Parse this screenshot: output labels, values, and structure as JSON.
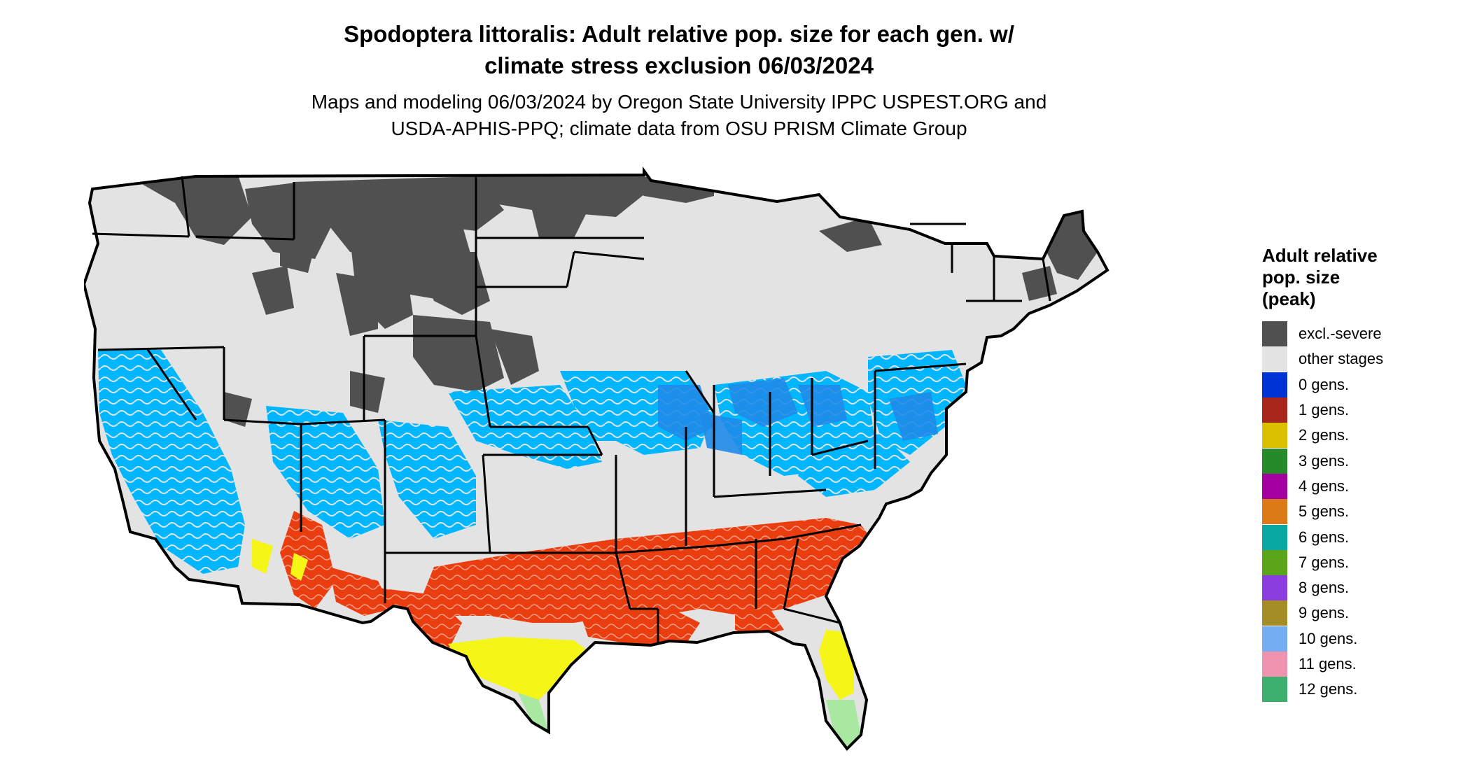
{
  "title": {
    "line1": "Spodoptera littoralis: Adult relative pop. size for each gen. w/",
    "line2": "climate stress exclusion 06/03/2024"
  },
  "subtitle": {
    "line1": "Maps and modeling 06/03/2024 by Oregon State University IPPC USPEST.ORG and",
    "line2": "USDA-APHIS-PPQ; climate data from OSU PRISM Climate Group"
  },
  "legend": {
    "title_line1": "Adult relative",
    "title_line2": "pop. size",
    "title_line3": "(peak)",
    "items": [
      {
        "label": "excl.-severe",
        "color": "#505050"
      },
      {
        "label": "other stages",
        "color": "#e3e3e3"
      },
      {
        "label": "0 gens.",
        "color": "#0033d6"
      },
      {
        "label": "1 gens.",
        "color": "#a8261c"
      },
      {
        "label": "2 gens.",
        "color": "#d9c000"
      },
      {
        "label": "3 gens.",
        "color": "#268a2a"
      },
      {
        "label": "4 gens.",
        "color": "#a3009f"
      },
      {
        "label": "5 gens.",
        "color": "#dc7a18"
      },
      {
        "label": "6 gens.",
        "color": "#0aa8a3"
      },
      {
        "label": "7 gens.",
        "color": "#5aa51a"
      },
      {
        "label": "8 gens.",
        "color": "#8a3ee0"
      },
      {
        "label": "9 gens.",
        "color": "#a38d24"
      },
      {
        "label": "10 gens.",
        "color": "#74aef2"
      },
      {
        "label": "11 gens.",
        "color": "#ef92ad"
      },
      {
        "label": "12 gens.",
        "color": "#3caf6d"
      }
    ]
  },
  "map_colors": {
    "land": "#e3e3e3",
    "excluded": "#505050",
    "light_blue": "#00b7ff",
    "mid_blue": "#1e8be8",
    "orange_red": "#ea3e10",
    "yellow": "#f5f518",
    "light_green": "#a8e8a0",
    "border": "#000000"
  }
}
